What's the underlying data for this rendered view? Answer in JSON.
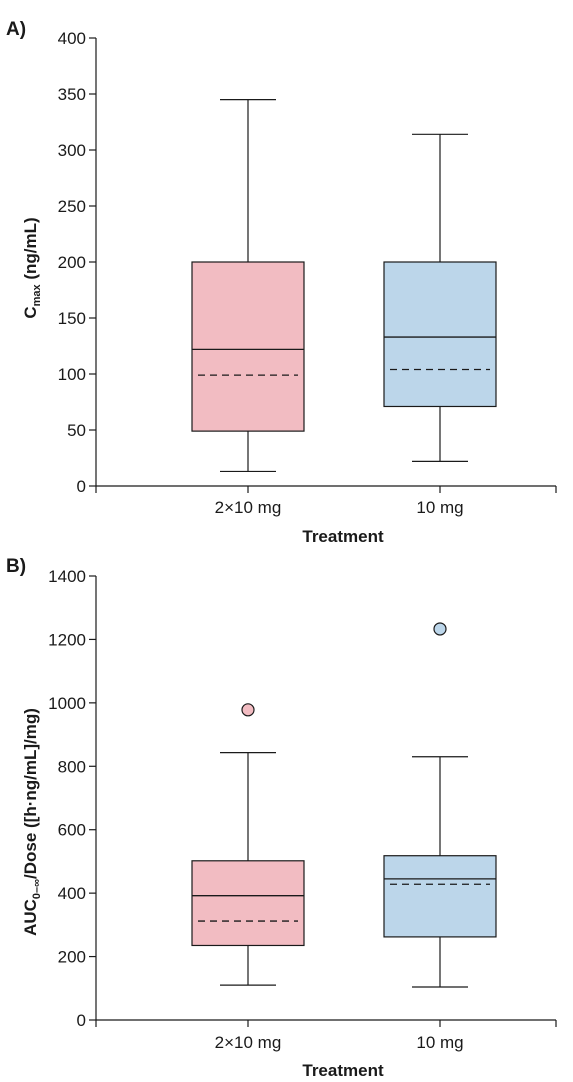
{
  "colors": {
    "pink": "#f2bcc2",
    "blue": "#bcd6ea",
    "ink": "#1a1a1a"
  },
  "chart_data": [
    {
      "type": "box",
      "panel_label": "A)",
      "xlabel": "Treatment",
      "ylabel_main": "C",
      "ylabel_sub": "max",
      "ylabel_rest": " (ng/mL)",
      "ylim": [
        0,
        400
      ],
      "yticks": [
        0,
        50,
        100,
        150,
        200,
        250,
        300,
        350,
        400
      ],
      "categories": [
        "2×10 mg",
        "10 mg"
      ],
      "boxes": [
        {
          "category": "2×10 mg",
          "min": 13,
          "q1": 49,
          "median": 122,
          "mean": 99,
          "q3": 200,
          "max": 345,
          "outliers": [],
          "color": "#f2bcc2"
        },
        {
          "category": "10 mg",
          "min": 22,
          "q1": 71,
          "median": 133,
          "mean": 104,
          "q3": 200,
          "max": 314,
          "outliers": [],
          "color": "#bcd6ea"
        }
      ]
    },
    {
      "type": "box",
      "panel_label": "B)",
      "xlabel": "Treatment",
      "ylabel_main": "AUC",
      "ylabel_sub": "0–∞",
      "ylabel_rest": "/Dose ([h·ng/mL]/mg)",
      "ylim": [
        0,
        1400
      ],
      "yticks": [
        0,
        200,
        400,
        600,
        800,
        1000,
        1200,
        1400
      ],
      "categories": [
        "2×10 mg",
        "10 mg"
      ],
      "boxes": [
        {
          "category": "2×10 mg",
          "min": 110,
          "q1": 235,
          "median": 392,
          "mean": 312,
          "q3": 502,
          "max": 843,
          "outliers": [
            978
          ],
          "color": "#f2bcc2"
        },
        {
          "category": "10 mg",
          "min": 104,
          "q1": 262,
          "median": 445,
          "mean": 428,
          "q3": 518,
          "max": 830,
          "outliers": [
            1233
          ],
          "color": "#bcd6ea"
        }
      ]
    }
  ]
}
